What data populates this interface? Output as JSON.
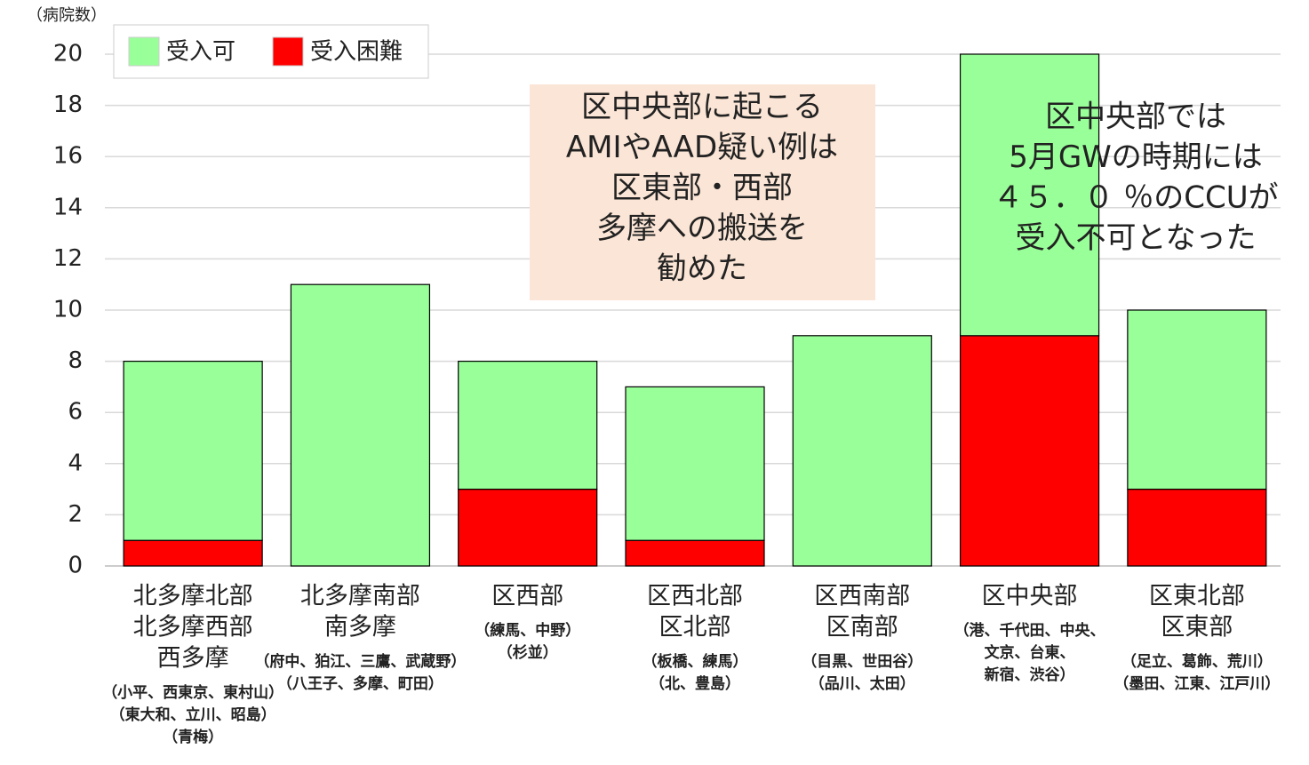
{
  "chart_data": {
    "type": "stacked_bar",
    "y_unit_label": "（病院数）",
    "categories": [
      [
        "北多摩北部",
        "北多摩西部",
        "西多摩"
      ],
      [
        "北多摩南部",
        "南多摩"
      ],
      [
        "区西部"
      ],
      [
        "区西北部",
        "区北部"
      ],
      [
        "区西南部",
        "区南部"
      ],
      [
        "区中央部"
      ],
      [
        "区東北部",
        "区東部"
      ]
    ],
    "category_notes": [
      [
        "（小平、西東京、東村山）",
        "（東大和、立川、昭島）",
        "（青梅）"
      ],
      [
        "（府中、狛江、三鷹、武蔵野）",
        "（八王子、多摩、町田）"
      ],
      [
        "（練馬、中野）",
        "（杉並）"
      ],
      [
        "（板橋、練馬）",
        "（北、豊島）"
      ],
      [
        "（目黒、世田谷）",
        "（品川、太田）"
      ],
      [
        "（港、千代田、中央、",
        "文京、台東、",
        "新宿、渋谷）"
      ],
      [
        "（足立、葛飾、荒川）",
        "（墨田、江東、江戸川）"
      ]
    ],
    "series": [
      {
        "name": "受入困難",
        "color": "#ff0000",
        "values": [
          1,
          0,
          3,
          1,
          0,
          9,
          3
        ]
      },
      {
        "name": "受入可",
        "color": "#99ff99",
        "values": [
          7,
          11,
          5,
          6,
          9,
          11,
          7
        ]
      }
    ],
    "legend_order": [
      1,
      0
    ],
    "ylim": [
      0,
      20
    ],
    "yticks": [
      0,
      2,
      4,
      6,
      8,
      10,
      12,
      14,
      16,
      18,
      20
    ],
    "grid": true,
    "annotations": [
      {
        "lines": [
          "区中央部に起こる",
          "AMIやAAD疑い例は",
          "区東部・西部",
          "多摩への搬送を",
          "勧めた"
        ],
        "box_color": "#fbe5d6"
      },
      {
        "lines": [
          "区中央部では",
          "5月GWの時期には",
          "４５．０ ％のCCUが",
          "受入不可となった"
        ]
      }
    ]
  }
}
